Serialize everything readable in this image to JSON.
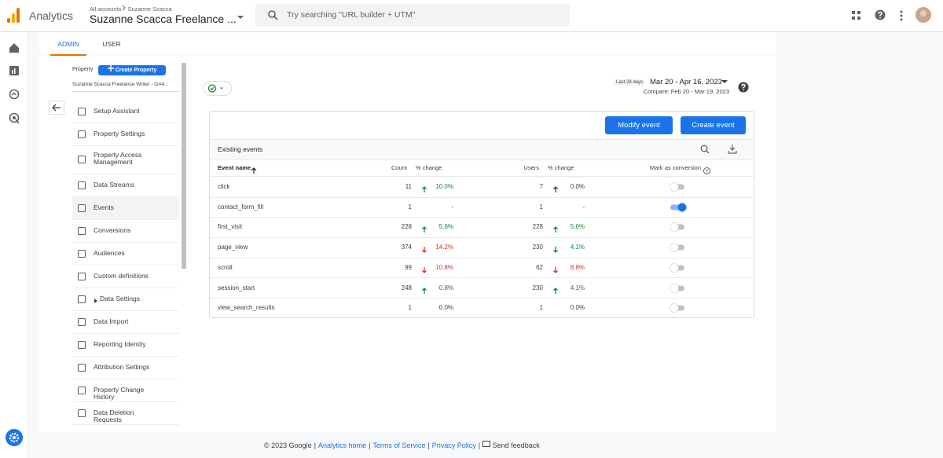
{
  "header": {
    "app": "Analytics",
    "breadcrumb_root": "All accounts",
    "breadcrumb_account": "Suzanne Scacca",
    "property": "Suzanne Scacca Freelance ...",
    "search_placeholder": "Try searching \"URL builder + UTM\""
  },
  "tabs": [
    "ADMIN",
    "USER"
  ],
  "sidebar": {
    "property_label": "Property",
    "create_button": "Create Property",
    "property_name": "Suzanne Scacca Freelance Writer - GA4...",
    "items": [
      "Setup Assistant",
      "Property Settings",
      "Property Access Management",
      "Data Streams",
      "Events",
      "Conversions",
      "Audiences",
      "Custom definitions",
      "Data Settings",
      "Data Import",
      "Reporting Identity",
      "Attribution Settings",
      "Property Change History",
      "Data Deletion Requests"
    ],
    "active_item": 4
  },
  "date": {
    "range_label": "Last 28 days",
    "range": "Mar 20 - Apr 16, 2023",
    "compare": "Compare: Feb 20 - Mar 19, 2023"
  },
  "buttons": [
    "Modify event",
    "Create event"
  ],
  "table": {
    "title": "Existing events",
    "columns": [
      "Event name",
      "Count",
      "% change",
      "Users",
      "% change",
      "Mark as conversion"
    ],
    "rows": [
      {
        "name": "click",
        "count": 11,
        "count_change": "10.0%",
        "count_trend": "up",
        "count_color": "#188038",
        "users": 7,
        "users_change": "0.0%",
        "users_trend": "up",
        "users_color": "#3c4043",
        "conversion": false
      },
      {
        "name": "contact_form_fill",
        "count": 1,
        "count_change": "-",
        "count_trend": null,
        "count_color": "#3c4043",
        "users": 1,
        "users_change": "-",
        "users_trend": null,
        "users_color": "#3c4043",
        "conversion": true
      },
      {
        "name": "first_visit",
        "count": 228,
        "count_change": "5.6%",
        "count_trend": "up",
        "count_color": "#188038",
        "users": 228,
        "users_change": "5.6%",
        "users_trend": "up",
        "users_color": "#188038",
        "conversion": false
      },
      {
        "name": "page_view",
        "count": 374,
        "count_change": "14.2%",
        "count_trend": "down",
        "count_color": "#d93025",
        "users": 230,
        "users_change": "4.1%",
        "users_trend": "down",
        "users_color": "#188038",
        "conversion": false
      },
      {
        "name": "scroll",
        "count": 99,
        "count_change": "10.8%",
        "count_trend": "down",
        "count_color": "#d93025",
        "users": 62,
        "users_change": "8.8%",
        "users_trend": "down",
        "users_color": "#d93025",
        "conversion": false
      },
      {
        "name": "session_start",
        "count": 248,
        "count_change": "0.8%",
        "count_trend": "up",
        "count_color": "#188038",
        "users": 230,
        "users_change": "4.1%",
        "users_trend": "up",
        "users_color": "#188038",
        "conversion": false
      },
      {
        "name": "view_search_results",
        "count": 1,
        "count_change": "0.0%",
        "count_trend": null,
        "count_color": "#3c4043",
        "users": 1,
        "users_change": "0.0%",
        "users_trend": null,
        "users_color": "#3c4043",
        "conversion": false
      }
    ]
  },
  "footer": {
    "copyright": "© 2023 Google",
    "links": [
      "Analytics home",
      "Terms of Service",
      "Privacy Policy"
    ],
    "feedback": "Send feedback"
  }
}
